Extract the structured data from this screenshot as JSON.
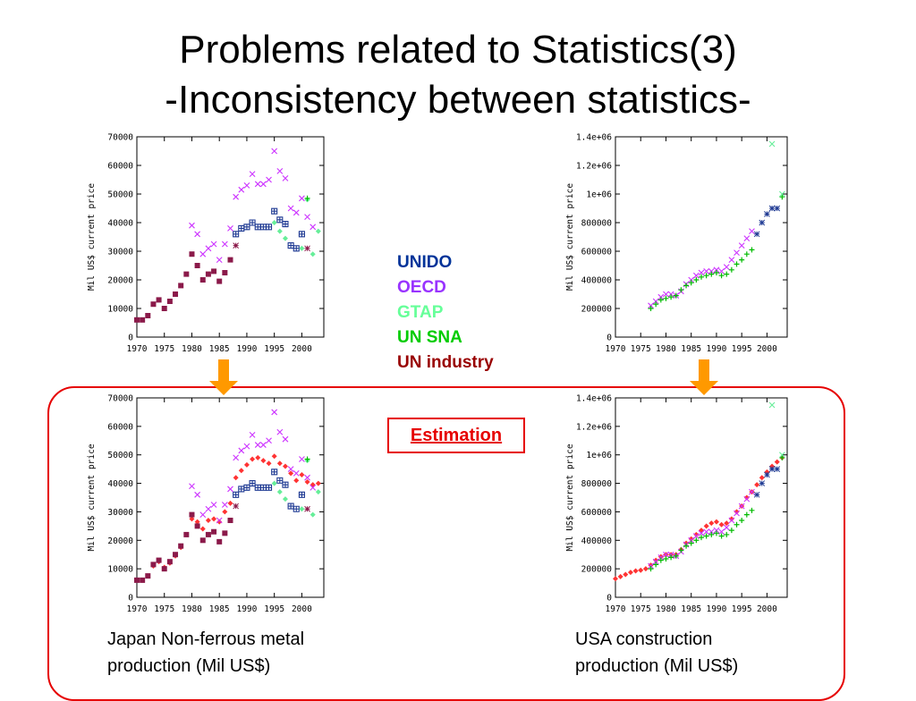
{
  "slide": {
    "title_line1": "Problems related to Statistics(3)",
    "title_line2": "-Inconsistency between statistics-",
    "estimation_label": "Estimation",
    "caption_left_line1": "Japan Non-ferrous metal",
    "caption_left_line2": "production (Mil US$)",
    "caption_right_line1": "USA construction",
    "caption_right_line2": "production (Mil US$)"
  },
  "legend": [
    {
      "label": "UNIDO",
      "color": "#003399"
    },
    {
      "label": "OECD",
      "color": "#9933ff"
    },
    {
      "label": "GTAP",
      "color": "#66ff99"
    },
    {
      "label": "UN SNA",
      "color": "#00cc00"
    },
    {
      "label": "UN industry",
      "color": "#990000"
    }
  ],
  "colors": {
    "unido": "#1f3a93",
    "oecd": "#cc33ff",
    "gtap": "#66ee99",
    "unsna": "#00bb00",
    "unind": "#8b1a4a",
    "estimate": "#ff3333",
    "frame": "#e60000",
    "arrow": "#ff9900"
  },
  "chart_data": [
    {
      "type": "scatter",
      "title": "",
      "ylabel": "Mil US$ current price",
      "xlabel": "",
      "xlim": [
        1970,
        2004
      ],
      "ylim": [
        0,
        70000
      ],
      "x_ticks": [
        1970,
        1975,
        1980,
        1985,
        1990,
        1995,
        2000
      ],
      "y_ticks": [
        0,
        10000,
        20000,
        30000,
        40000,
        50000,
        60000,
        70000
      ],
      "y_tick_labels": [
        "0",
        "10000",
        "20000",
        "30000",
        "40000",
        "50000",
        "60000",
        "70000"
      ],
      "series": [
        {
          "name": "UN industry",
          "key": "unind",
          "marker": "square",
          "x": [
            1970,
            1971,
            1972,
            1973,
            1974,
            1975,
            1976,
            1977,
            1978,
            1979,
            1980,
            1981,
            1982,
            1983,
            1984,
            1985,
            1986,
            1987
          ],
          "y": [
            6000,
            6000,
            7500,
            11500,
            13000,
            10000,
            12500,
            15000,
            18000,
            22000,
            29000,
            25000,
            20000,
            22000,
            23000,
            19500,
            22500,
            27000
          ]
        },
        {
          "name": "UNIDO",
          "key": "unido",
          "marker": "boxplus",
          "x": [
            1988,
            1989,
            1990,
            1991,
            1992,
            1993,
            1994,
            1995,
            1996,
            1997,
            1998,
            1999,
            2000
          ],
          "y": [
            36000,
            38000,
            38500,
            40000,
            38500,
            38500,
            38500,
            44000,
            41000,
            39500,
            32000,
            31000,
            36000
          ]
        },
        {
          "name": "OECD",
          "key": "oecd",
          "marker": "x",
          "x": [
            1980,
            1981,
            1982,
            1983,
            1984,
            1985,
            1986,
            1987,
            1988,
            1989,
            1990,
            1991,
            1992,
            1993,
            1994,
            1995,
            1996,
            1997,
            1998,
            1999,
            2000,
            2001,
            2002
          ],
          "y": [
            39000,
            36000,
            29000,
            31000,
            32500,
            27000,
            32500,
            38000,
            49000,
            51500,
            53000,
            57000,
            53500,
            53500,
            55000,
            65000,
            58000,
            55500,
            45000,
            43500,
            48500,
            42000,
            38500
          ]
        },
        {
          "name": "GTAP",
          "key": "gtap",
          "marker": "diamond",
          "x": [
            1995,
            1996,
            1997,
            2000,
            2001,
            2002,
            2003
          ],
          "y": [
            40000,
            37000,
            34500,
            31000,
            48000,
            29000,
            37000
          ]
        },
        {
          "name": "UN SNA",
          "key": "unsna",
          "marker": "plus",
          "x": [
            2001
          ],
          "y": [
            48500
          ]
        },
        {
          "name": "UN industry (star)",
          "key": "unind",
          "marker": "star",
          "x": [
            1988,
            2001
          ],
          "y": [
            32000,
            31000
          ]
        }
      ]
    },
    {
      "type": "scatter",
      "title": "",
      "ylabel": "Mil US$ current price",
      "xlabel": "",
      "xlim": [
        1970,
        2004
      ],
      "ylim": [
        0,
        1400000
      ],
      "x_ticks": [
        1970,
        1975,
        1980,
        1985,
        1990,
        1995,
        2000
      ],
      "y_ticks": [
        0,
        200000,
        400000,
        600000,
        800000,
        1000000,
        1200000,
        1400000
      ],
      "y_tick_labels": [
        "0",
        "200000",
        "400000",
        "600000",
        "800000",
        "1e+06",
        "1.2e+06",
        "1.4e+06"
      ],
      "series": [
        {
          "name": "OECD",
          "key": "oecd",
          "marker": "x",
          "x": [
            1977,
            1978,
            1979,
            1980,
            1981,
            1982,
            1983,
            1984,
            1985,
            1986,
            1987,
            1988,
            1989,
            1990,
            1991,
            1992,
            1993,
            1994,
            1995,
            1996,
            1997
          ],
          "y": [
            220000,
            250000,
            280000,
            300000,
            300000,
            290000,
            320000,
            370000,
            400000,
            430000,
            450000,
            460000,
            460000,
            470000,
            460000,
            490000,
            540000,
            590000,
            640000,
            690000,
            740000
          ]
        },
        {
          "name": "UN SNA",
          "key": "unsna",
          "marker": "plus",
          "x": [
            1977,
            1978,
            1979,
            1980,
            1981,
            1982,
            1983,
            1984,
            1985,
            1986,
            1987,
            1988,
            1989,
            1990,
            1991,
            1992,
            1993,
            1994,
            1995,
            1996,
            1997,
            2003
          ],
          "y": [
            200000,
            230000,
            260000,
            270000,
            280000,
            290000,
            330000,
            360000,
            380000,
            400000,
            420000,
            430000,
            440000,
            450000,
            430000,
            440000,
            470000,
            510000,
            540000,
            580000,
            610000,
            980000
          ]
        },
        {
          "name": "UNIDO",
          "key": "unido",
          "marker": "star",
          "x": [
            1998,
            1999,
            2000,
            2001,
            2002
          ],
          "y": [
            720000,
            800000,
            860000,
            900000,
            900000
          ]
        },
        {
          "name": "GTAP",
          "key": "gtap",
          "marker": "x",
          "x": [
            2001,
            2003
          ],
          "y": [
            1350000,
            1000000
          ]
        }
      ]
    },
    {
      "type": "scatter",
      "title": "",
      "ylabel": "Mil US$ current price",
      "xlabel": "",
      "xlim": [
        1970,
        2004
      ],
      "ylim": [
        0,
        70000
      ],
      "x_ticks": [
        1970,
        1975,
        1980,
        1985,
        1990,
        1995,
        2000
      ],
      "y_ticks": [
        0,
        10000,
        20000,
        30000,
        40000,
        50000,
        60000,
        70000
      ],
      "y_tick_labels": [
        "0",
        "10000",
        "20000",
        "30000",
        "40000",
        "50000",
        "60000",
        "70000"
      ],
      "series": [
        {
          "name": "Estimation",
          "key": "estimate",
          "marker": "diamond",
          "x": [
            1970,
            1971,
            1972,
            1973,
            1974,
            1975,
            1976,
            1977,
            1978,
            1979,
            1980,
            1981,
            1982,
            1983,
            1984,
            1985,
            1986,
            1987,
            1988,
            1989,
            1990,
            1991,
            1992,
            1993,
            1994,
            1995,
            1996,
            1997,
            1998,
            1999,
            2000,
            2001,
            2002,
            2003
          ],
          "y": [
            6000,
            6000,
            7500,
            11000,
            12500,
            10500,
            12000,
            14500,
            17500,
            22000,
            27500,
            26500,
            24000,
            27000,
            27500,
            26500,
            30000,
            33000,
            42000,
            44500,
            46500,
            48500,
            49000,
            48000,
            47000,
            49500,
            47000,
            46000,
            43500,
            41000,
            43000,
            40500,
            39500,
            40000
          ]
        },
        {
          "name": "UN industry",
          "key": "unind",
          "marker": "square",
          "x": [
            1970,
            1971,
            1972,
            1973,
            1974,
            1975,
            1976,
            1977,
            1978,
            1979,
            1980,
            1981,
            1982,
            1983,
            1984,
            1985,
            1986,
            1987
          ],
          "y": [
            6000,
            6000,
            7500,
            11500,
            13000,
            10000,
            12500,
            15000,
            18000,
            22000,
            29000,
            25000,
            20000,
            22000,
            23000,
            19500,
            22500,
            27000
          ]
        },
        {
          "name": "UNIDO",
          "key": "unido",
          "marker": "boxplus",
          "x": [
            1988,
            1989,
            1990,
            1991,
            1992,
            1993,
            1994,
            1995,
            1996,
            1997,
            1998,
            1999,
            2000
          ],
          "y": [
            36000,
            38000,
            38500,
            40000,
            38500,
            38500,
            38500,
            44000,
            41000,
            39500,
            32000,
            31000,
            36000
          ]
        },
        {
          "name": "OECD",
          "key": "oecd",
          "marker": "x",
          "x": [
            1980,
            1981,
            1982,
            1983,
            1984,
            1985,
            1986,
            1987,
            1988,
            1989,
            1990,
            1991,
            1992,
            1993,
            1994,
            1995,
            1996,
            1997,
            1998,
            1999,
            2000,
            2001,
            2002
          ],
          "y": [
            39000,
            36000,
            29000,
            31000,
            32500,
            27000,
            32500,
            38000,
            49000,
            51500,
            53000,
            57000,
            53500,
            53500,
            55000,
            65000,
            58000,
            55500,
            45000,
            43500,
            48500,
            42000,
            38500
          ]
        },
        {
          "name": "GTAP",
          "key": "gtap",
          "marker": "diamond",
          "x": [
            1995,
            1996,
            1997,
            2000,
            2001,
            2002,
            2003
          ],
          "y": [
            40000,
            37000,
            34500,
            31000,
            48000,
            29000,
            37000
          ]
        },
        {
          "name": "UN SNA",
          "key": "unsna",
          "marker": "plus",
          "x": [
            2001
          ],
          "y": [
            48500
          ]
        },
        {
          "name": "UN industry (star)",
          "key": "unind",
          "marker": "star",
          "x": [
            1988,
            2001
          ],
          "y": [
            32000,
            31000
          ]
        }
      ]
    },
    {
      "type": "scatter",
      "title": "",
      "ylabel": "Mil US$ current price",
      "xlabel": "",
      "xlim": [
        1970,
        2004
      ],
      "ylim": [
        0,
        1400000
      ],
      "x_ticks": [
        1970,
        1975,
        1980,
        1985,
        1990,
        1995,
        2000
      ],
      "y_ticks": [
        0,
        200000,
        400000,
        600000,
        800000,
        1000000,
        1200000,
        1400000
      ],
      "y_tick_labels": [
        "0",
        "200000",
        "400000",
        "600000",
        "800000",
        "1e+06",
        "1.2e+06",
        "1.4e+06"
      ],
      "series": [
        {
          "name": "Estimation",
          "key": "estimate",
          "marker": "diamond",
          "x": [
            1970,
            1971,
            1972,
            1973,
            1974,
            1975,
            1976,
            1977,
            1978,
            1979,
            1980,
            1981,
            1982,
            1983,
            1984,
            1985,
            1986,
            1987,
            1988,
            1989,
            1990,
            1991,
            1992,
            1993,
            1994,
            1995,
            1996,
            1997,
            1998,
            1999,
            2000,
            2001,
            2002,
            2003
          ],
          "y": [
            130000,
            145000,
            160000,
            175000,
            185000,
            190000,
            200000,
            225000,
            260000,
            285000,
            300000,
            300000,
            300000,
            335000,
            380000,
            410000,
            440000,
            470000,
            500000,
            520000,
            530000,
            510000,
            520000,
            550000,
            600000,
            640000,
            700000,
            740000,
            790000,
            840000,
            880000,
            920000,
            950000,
            980000
          ]
        },
        {
          "name": "OECD",
          "key": "oecd",
          "marker": "x",
          "x": [
            1977,
            1978,
            1979,
            1980,
            1981,
            1982,
            1983,
            1984,
            1985,
            1986,
            1987,
            1988,
            1989,
            1990,
            1991,
            1992,
            1993,
            1994,
            1995,
            1996,
            1997
          ],
          "y": [
            220000,
            250000,
            280000,
            300000,
            300000,
            290000,
            320000,
            370000,
            400000,
            430000,
            450000,
            460000,
            460000,
            470000,
            460000,
            490000,
            540000,
            590000,
            640000,
            690000,
            740000
          ]
        },
        {
          "name": "UN SNA",
          "key": "unsna",
          "marker": "plus",
          "x": [
            1977,
            1978,
            1979,
            1980,
            1981,
            1982,
            1983,
            1984,
            1985,
            1986,
            1987,
            1988,
            1989,
            1990,
            1991,
            1992,
            1993,
            1994,
            1995,
            1996,
            1997,
            2003
          ],
          "y": [
            200000,
            230000,
            260000,
            270000,
            280000,
            290000,
            330000,
            360000,
            380000,
            400000,
            420000,
            430000,
            440000,
            450000,
            430000,
            440000,
            470000,
            510000,
            540000,
            580000,
            610000,
            980000
          ]
        },
        {
          "name": "UNIDO",
          "key": "unido",
          "marker": "star",
          "x": [
            1998,
            1999,
            2000,
            2001,
            2002
          ],
          "y": [
            720000,
            800000,
            860000,
            900000,
            900000
          ]
        },
        {
          "name": "GTAP",
          "key": "gtap",
          "marker": "x",
          "x": [
            2001,
            2003
          ],
          "y": [
            1350000,
            1000000
          ]
        }
      ]
    }
  ]
}
